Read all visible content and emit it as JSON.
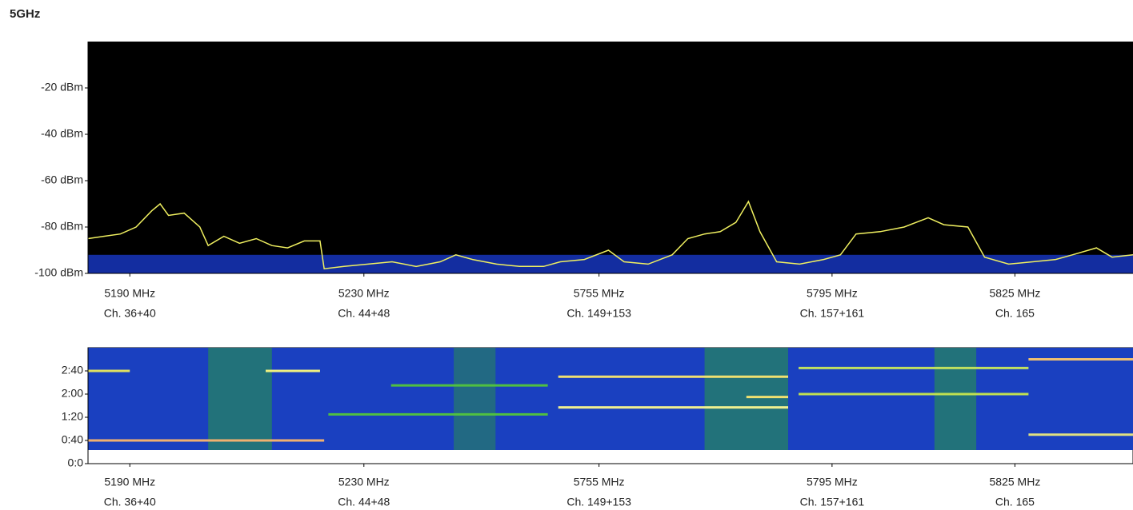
{
  "title": "5GHz",
  "chart_data": [
    {
      "type": "line",
      "ylim": [
        -100,
        0
      ],
      "yticks": [
        {
          "value": -100,
          "label": "-100 dBm"
        },
        {
          "value": -80,
          "label": "-80 dBm"
        },
        {
          "value": -60,
          "label": "-60 dBm"
        },
        {
          "value": -40,
          "label": "-40 dBm"
        },
        {
          "value": -20,
          "label": "-20 dBm"
        }
      ],
      "xlim": [
        0,
        100
      ],
      "xticks": [
        {
          "value": 4.0,
          "label": "5190 MHz",
          "channel": "Ch. 36+40"
        },
        {
          "value": 26.4,
          "label": "5230 MHz",
          "channel": "Ch. 44+48"
        },
        {
          "value": 48.9,
          "label": "5755 MHz",
          "channel": "Ch. 149+153"
        },
        {
          "value": 71.2,
          "label": "5795 MHz",
          "channel": "Ch. 157+161"
        },
        {
          "value": 88.7,
          "label": "5825 MHz",
          "channel": "Ch. 165"
        }
      ],
      "series": [
        {
          "color": "#f0f060",
          "x": [
            0,
            1.5,
            3.1,
            4.6,
            6.1,
            6.9,
            7.7,
            9.2,
            10.7,
            11.5,
            13.0,
            14.5,
            16.1,
            17.6,
            19.1,
            20.7,
            22.2,
            22.6,
            24.5,
            26.8,
            29.1,
            31.4,
            33.7,
            35.2,
            36.8,
            39.1,
            41.3,
            43.6,
            45.2,
            47.5,
            49.8,
            51.3,
            53.6,
            55.9,
            57.4,
            59.0,
            60.5,
            62.0,
            63.2,
            64.3,
            65.9,
            68.1,
            70.4,
            72.0,
            73.5,
            75.8,
            78.1,
            80.4,
            81.9,
            84.2,
            85.8,
            88.1,
            90.4,
            92.6,
            94.2,
            96.5,
            98.0,
            100
          ],
          "values": [
            -85,
            -84,
            -83,
            -80,
            -73,
            -70,
            -75,
            -74,
            -80,
            -88,
            -84,
            -87,
            -85,
            -88,
            -89,
            -86,
            -86,
            -98,
            -97,
            -96,
            -95,
            -97,
            -95,
            -92,
            -94,
            -96,
            -97,
            -97,
            -95,
            -94,
            -90,
            -95,
            -96,
            -92,
            -85,
            -83,
            -82,
            -78,
            -69,
            -82,
            -95,
            -96,
            -94,
            -92,
            -83,
            -82,
            -80,
            -76,
            -79,
            -80,
            -93,
            -96,
            -95,
            -94,
            -92,
            -89,
            -93,
            -92
          ]
        }
      ]
    },
    {
      "type": "waterfall",
      "ylim": [
        0,
        200
      ],
      "yticks": [
        {
          "value": 0,
          "label": "0:0"
        },
        {
          "value": 40,
          "label": "0:40"
        },
        {
          "value": 80,
          "label": "1:20"
        },
        {
          "value": 120,
          "label": "2:00"
        },
        {
          "value": 160,
          "label": "2:40"
        }
      ],
      "xlim": [
        0,
        100
      ],
      "xticks": [
        {
          "value": 4.0,
          "label": "5190 MHz",
          "channel": "Ch. 36+40"
        },
        {
          "value": 26.4,
          "label": "5230 MHz",
          "channel": "Ch. 44+48"
        },
        {
          "value": 48.9,
          "label": "5755 MHz",
          "channel": "Ch. 149+153"
        },
        {
          "value": 71.2,
          "label": "5795 MHz",
          "channel": "Ch. 157+161"
        },
        {
          "value": 88.7,
          "label": "5825 MHz",
          "channel": "Ch. 165"
        }
      ],
      "bands": [
        {
          "x": [
            11.5,
            17.6
          ],
          "color": "#2a9a40"
        },
        {
          "x": [
            59.0,
            67.0
          ],
          "color": "#2a9a40"
        },
        {
          "x": [
            81.0,
            85.0
          ],
          "color": "#2a9a40"
        },
        {
          "x": [
            35.0,
            39.0
          ],
          "color": "#2a8a50"
        }
      ],
      "stripes": [
        {
          "t": 40,
          "x": [
            0,
            22.6
          ],
          "color": "#f0b070"
        },
        {
          "t": 160,
          "x": [
            0,
            4.0
          ],
          "color": "#e0e060"
        },
        {
          "t": 160,
          "x": [
            17.0,
            22.2
          ],
          "color": "#f0f080"
        },
        {
          "t": 150,
          "x": [
            45.0,
            67.0
          ],
          "color": "#f0e070"
        },
        {
          "t": 115,
          "x": [
            63.0,
            67.0
          ],
          "color": "#f0e070"
        },
        {
          "t": 97,
          "x": [
            45.0,
            67.0
          ],
          "color": "#f0f090"
        },
        {
          "t": 120,
          "x": [
            68.0,
            90.0
          ],
          "color": "#c0e050"
        },
        {
          "t": 165,
          "x": [
            68.0,
            90.0
          ],
          "color": "#c0e060"
        },
        {
          "t": 180,
          "x": [
            90.0,
            100
          ],
          "color": "#f0c070"
        },
        {
          "t": 50,
          "x": [
            90.0,
            100
          ],
          "color": "#e0e080"
        },
        {
          "t": 135,
          "x": [
            29.0,
            44.0
          ],
          "color": "#50c040"
        },
        {
          "t": 85,
          "x": [
            23.0,
            44.0
          ],
          "color": "#50c040"
        }
      ]
    }
  ]
}
